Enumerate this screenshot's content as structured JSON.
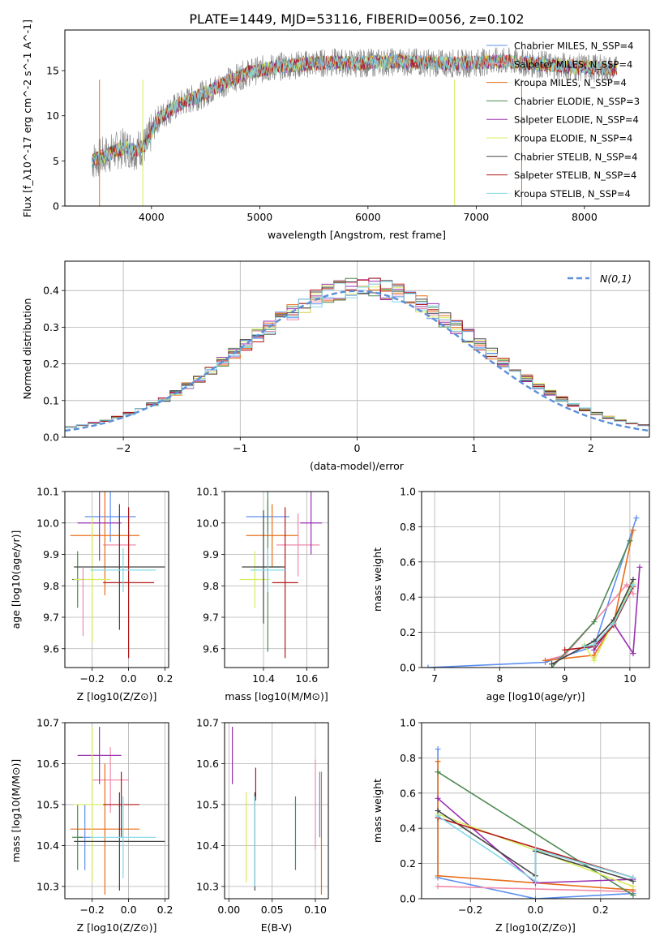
{
  "figure": {
    "title": "PLATE=1449, MJD=53116, FIBERID=0056, z=0.102"
  },
  "colors": {
    "Chabrier MILES": "#5b8ff0",
    "Salpeter MILES": "#f08aa8",
    "Kroupa MILES": "#e86e1a",
    "Chabrier ELODIE": "#4e8a52",
    "Salpeter ELODIE": "#9a2fb0",
    "Kroupa ELODIE": "#d7ec5c",
    "Chabrier STELIB": "#444444",
    "Salpeter STELIB": "#b01818",
    "Kroupa STELIB": "#80d8e8",
    "data": "#808080",
    "normal": "#5b8fd8"
  },
  "chart_data": [
    {
      "id": "spectrum",
      "type": "line",
      "xlabel": "wavelength [Angstrom, rest frame]",
      "ylabel": "Flux [f_λ10^-17 erg cm^-2 s^-1 A^-1]",
      "xlim": [
        3200,
        8600
      ],
      "ylim": [
        0,
        19.5
      ],
      "xticks": [
        4000,
        5000,
        6000,
        7000,
        8000
      ],
      "yticks": [
        0,
        5,
        10,
        15
      ],
      "grid": false,
      "legend_position": "right",
      "legend": [
        {
          "label": "Chabrier MILES, N_SSP=4",
          "key": "Chabrier MILES"
        },
        {
          "label": "Salpeter MILES, N_SSP=4",
          "key": "Salpeter MILES"
        },
        {
          "label": "Kroupa MILES, N_SSP=4",
          "key": "Kroupa MILES"
        },
        {
          "label": "Chabrier ELODIE, N_SSP=3",
          "key": "Chabrier ELODIE"
        },
        {
          "label": "Salpeter ELODIE, N_SSP=4",
          "key": "Salpeter ELODIE"
        },
        {
          "label": "Kroupa ELODIE, N_SSP=4",
          "key": "Kroupa ELODIE"
        },
        {
          "label": "Chabrier STELIB, N_SSP=4",
          "key": "Chabrier STELIB"
        },
        {
          "label": "Salpeter STELIB, N_SSP=4",
          "key": "Salpeter STELIB"
        },
        {
          "label": "Kroupa STELIB, N_SSP=4",
          "key": "Kroupa STELIB"
        }
      ],
      "continuum": {
        "x": [
          3450,
          3550,
          3650,
          3750,
          3850,
          3950,
          4050,
          4150,
          4300,
          4500,
          4700,
          4900,
          5100,
          5300,
          5500,
          5700,
          5900,
          6100,
          6300,
          6500,
          6700,
          6900,
          7100,
          7300,
          7500,
          7700,
          7900,
          8100,
          8300
        ],
        "y": [
          5.0,
          5.5,
          6.0,
          6.5,
          6.2,
          6.8,
          9.5,
          10.5,
          11.5,
          12.5,
          13.8,
          14.8,
          15.3,
          15.6,
          15.8,
          15.9,
          15.8,
          15.9,
          16.0,
          15.9,
          15.8,
          15.8,
          16.0,
          16.0,
          15.8,
          15.6,
          15.4,
          15.3,
          15.1
        ]
      }
    },
    {
      "id": "residuals",
      "type": "line",
      "xlabel": "(data-model)/error",
      "ylabel": "Normed distribution",
      "xlim": [
        -2.5,
        2.5
      ],
      "ylim": [
        0,
        0.48
      ],
      "xticks": [
        -2,
        -1,
        0,
        1,
        2
      ],
      "xticklabels": [
        "−2",
        "−1",
        "0",
        "1",
        "2"
      ],
      "yticks": [
        0.0,
        0.1,
        0.2,
        0.3,
        0.4
      ],
      "grid": true,
      "legend_position": "top-right",
      "legend": [
        {
          "label": "N(0,1)",
          "key": "normal"
        }
      ]
    },
    {
      "id": "age_vs_Z",
      "type": "scatter",
      "xlabel": "Z [log10(Z/Z⊙)]",
      "ylabel": "age  [log10(age/yr)]",
      "xlim": [
        -0.35,
        0.22
      ],
      "ylim": [
        9.54,
        10.1
      ],
      "xticks": [
        -0.2,
        0.0,
        0.2
      ],
      "xticklabels": [
        "−0.2",
        "0.0",
        "0.2"
      ],
      "yticks": [
        9.6,
        9.7,
        9.8,
        9.9,
        10.0,
        10.1
      ],
      "grid": true,
      "points": [
        {
          "key": "Chabrier MILES",
          "x": -0.1,
          "xerr": 0.14,
          "y": 10.02,
          "yerr": 0.08
        },
        {
          "key": "Salpeter MILES",
          "x": -0.05,
          "xerr": 0.09,
          "y": 9.93,
          "yerr": 0.09
        },
        {
          "key": "Kroupa MILES",
          "x": -0.13,
          "xerr": 0.19,
          "y": 9.96,
          "yerr": 0.19
        },
        {
          "key": "Chabrier ELODIE",
          "x": -0.28,
          "xerr": 0.03,
          "y": 9.82,
          "yerr": 0.09
        },
        {
          "key": "Salpeter ELODIE",
          "x": -0.16,
          "xerr": 0.12,
          "y": 10.0,
          "yerr": 0.12
        },
        {
          "key": "Kroupa ELODIE",
          "x": -0.2,
          "xerr": 0.1,
          "y": 9.82,
          "yerr": 0.2
        },
        {
          "key": "Chabrier STELIB",
          "x": -0.05,
          "xerr": 0.25,
          "y": 9.86,
          "yerr": 0.2
        },
        {
          "key": "Salpeter STELIB",
          "x": 0.0,
          "xerr": 0.14,
          "y": 9.81,
          "yerr": 0.24
        },
        {
          "key": "Kroupa STELIB",
          "x": -0.03,
          "xerr": 0.18,
          "y": 9.85,
          "yerr": 0.07
        },
        {
          "key": "Pink line",
          "x": -0.25,
          "xerr": 0.0,
          "y": 9.75,
          "yerr": 0.11
        }
      ]
    },
    {
      "id": "age_vs_mass",
      "type": "scatter",
      "xlabel": "mass [log10(M/M⊙)]",
      "ylabel": "",
      "xlim": [
        10.22,
        10.7
      ],
      "ylim": [
        9.54,
        10.1
      ],
      "xticks": [
        10.4,
        10.6
      ],
      "yticks": [
        9.6,
        9.7,
        9.8,
        9.9,
        10.0,
        10.1
      ],
      "grid": true,
      "points": [
        {
          "key": "Chabrier MILES",
          "x": 10.42,
          "xerr": 0.1,
          "y": 10.02,
          "yerr": 0.05
        },
        {
          "key": "Salpeter MILES",
          "x": 10.56,
          "xerr": 0.1,
          "y": 9.93,
          "yerr": 0.1
        },
        {
          "key": "Kroupa MILES",
          "x": 10.44,
          "xerr": 0.12,
          "y": 9.96,
          "yerr": 0.1
        },
        {
          "key": "Chabrier ELODIE",
          "x": 10.42,
          "xerr": 0.06,
          "y": 9.86,
          "yerr": 0.27
        },
        {
          "key": "Salpeter ELODIE",
          "x": 10.62,
          "xerr": 0.05,
          "y": 10.0,
          "yerr": 0.1
        },
        {
          "key": "Kroupa ELODIE",
          "x": 10.36,
          "xerr": 0.07,
          "y": 9.82,
          "yerr": 0.09
        },
        {
          "key": "Chabrier STELIB",
          "x": 10.4,
          "xerr": 0.1,
          "y": 9.86,
          "yerr": 0.18
        },
        {
          "key": "Salpeter STELIB",
          "x": 10.5,
          "xerr": 0.06,
          "y": 9.81,
          "yerr": 0.24
        },
        {
          "key": "Kroupa STELIB",
          "x": 10.42,
          "xerr": 0.08,
          "y": 9.85,
          "yerr": 0.07
        }
      ]
    },
    {
      "id": "weight_vs_age",
      "type": "line",
      "xlabel": "age  [log10(age/yr)]",
      "ylabel": "mass weight",
      "xlim": [
        6.8,
        10.3
      ],
      "ylim": [
        0,
        1.0
      ],
      "xticks": [
        7,
        8,
        9,
        10
      ],
      "yticks": [
        0.0,
        0.2,
        0.4,
        0.6,
        0.8,
        1.0
      ],
      "grid": true,
      "series": [
        {
          "key": "Chabrier MILES",
          "x": [
            6.9,
            8.7,
            9.45,
            10.1
          ],
          "y": [
            0.0,
            0.03,
            0.12,
            0.85
          ]
        },
        {
          "key": "Salpeter MILES",
          "x": [
            8.7,
            9.0,
            9.95,
            10.05
          ],
          "y": [
            0.04,
            0.07,
            0.47,
            0.42
          ]
        },
        {
          "key": "Kroupa MILES",
          "x": [
            8.7,
            9.45,
            9.75,
            10.05
          ],
          "y": [
            0.04,
            0.07,
            0.25,
            0.78
          ]
        },
        {
          "key": "Chabrier ELODIE",
          "x": [
            8.8,
            9.45,
            10.0
          ],
          "y": [
            0.0,
            0.26,
            0.72
          ]
        },
        {
          "key": "Salpeter ELODIE",
          "x": [
            9.45,
            9.75,
            10.05,
            10.15
          ],
          "y": [
            0.1,
            0.25,
            0.08,
            0.57
          ]
        },
        {
          "key": "Kroupa ELODIE",
          "x": [
            9.3,
            9.45,
            9.75,
            10.05
          ],
          "y": [
            0.13,
            0.04,
            0.26,
            0.48
          ]
        },
        {
          "key": "Chabrier STELIB",
          "x": [
            8.8,
            9.45,
            9.75,
            10.05
          ],
          "y": [
            0.02,
            0.15,
            0.27,
            0.5
          ]
        },
        {
          "key": "Salpeter STELIB",
          "x": [
            9.0,
            9.45,
            9.75,
            10.05
          ],
          "y": [
            0.1,
            0.12,
            0.24,
            0.46
          ]
        },
        {
          "key": "Kroupa STELIB",
          "x": [
            9.3,
            9.45,
            9.75,
            10.05
          ],
          "y": [
            0.12,
            0.13,
            0.25,
            0.47
          ]
        }
      ]
    },
    {
      "id": "mass_vs_Z",
      "type": "scatter",
      "xlabel": "Z [log10(Z/Z⊙)]",
      "ylabel": "mass [log10(M/M⊙)]",
      "xlim": [
        -0.35,
        0.22
      ],
      "ylim": [
        10.27,
        10.7
      ],
      "xticks": [
        -0.2,
        0.0,
        0.2
      ],
      "xticklabels": [
        "−0.2",
        "0.0",
        "0.2"
      ],
      "yticks": [
        10.3,
        10.4,
        10.5,
        10.6,
        10.7
      ],
      "grid": true,
      "points": [
        {
          "key": "Chabrier MILES",
          "x": -0.24,
          "xerr": 0.04,
          "y": 10.42,
          "yerr": 0.08
        },
        {
          "key": "Salpeter MILES",
          "x": -0.1,
          "xerr": 0.1,
          "y": 10.56,
          "yerr": 0.08
        },
        {
          "key": "Kroupa MILES",
          "x": -0.13,
          "xerr": 0.19,
          "y": 10.44,
          "yerr": 0.16
        },
        {
          "key": "Chabrier ELODIE",
          "x": -0.28,
          "xerr": 0.03,
          "y": 10.42,
          "yerr": 0.08
        },
        {
          "key": "Salpeter ELODIE",
          "x": -0.16,
          "xerr": 0.12,
          "y": 10.62,
          "yerr": 0.07
        },
        {
          "key": "Kroupa ELODIE",
          "x": -0.2,
          "xerr": 0.1,
          "y": 10.5,
          "yerr": 0.19
        },
        {
          "key": "Chabrier STELIB",
          "x": -0.05,
          "xerr": 0.25,
          "y": 10.41,
          "yerr": 0.12
        },
        {
          "key": "Salpeter STELIB",
          "x": -0.04,
          "xerr": 0.1,
          "y": 10.5,
          "yerr": 0.08
        },
        {
          "key": "Kroupa STELIB",
          "x": -0.03,
          "xerr": 0.18,
          "y": 10.42,
          "yerr": 0.1
        }
      ]
    },
    {
      "id": "mass_vs_ebv",
      "type": "scatter",
      "xlabel": "E(B-V)",
      "ylabel": "",
      "xlim": [
        -0.005,
        0.115
      ],
      "ylim": [
        10.27,
        10.7
      ],
      "xticks": [
        0.0,
        0.05,
        0.1
      ],
      "xticklabels": [
        "0.00",
        "0.05",
        "0.10"
      ],
      "yticks": [
        10.3,
        10.4,
        10.5,
        10.6,
        10.7
      ],
      "grid": true,
      "points": [
        {
          "key": "Chabrier MILES",
          "x": 0.105,
          "y": 10.5,
          "yerr": 0.08
        },
        {
          "key": "Salpeter MILES",
          "x": 0.1,
          "y": 10.5,
          "yerr": 0.11
        },
        {
          "key": "Kroupa MILES",
          "x": 0.107,
          "y": 10.43,
          "yerr": 0.15
        },
        {
          "key": "Chabrier ELODIE",
          "x": 0.077,
          "y": 10.43,
          "yerr": 0.09
        },
        {
          "key": "Salpeter ELODIE",
          "x": 0.004,
          "y": 10.62,
          "yerr": 0.07
        },
        {
          "key": "Kroupa ELODIE",
          "x": 0.02,
          "y": 10.42,
          "yerr": 0.11
        },
        {
          "key": "Chabrier STELIB",
          "x": 0.03,
          "y": 10.41,
          "yerr": 0.12
        },
        {
          "key": "Salpeter STELIB",
          "x": 0.031,
          "y": 10.55,
          "yerr": 0.04
        },
        {
          "key": "Kroupa STELIB",
          "x": 0.03,
          "y": 10.41,
          "yerr": 0.11
        }
      ]
    },
    {
      "id": "weight_vs_Z",
      "type": "line",
      "xlabel": "Z [log10(Z/Z⊙)]",
      "ylabel": "mass weight",
      "xlim": [
        -0.35,
        0.35
      ],
      "ylim": [
        0,
        1.0
      ],
      "xticks": [
        -0.2,
        0.0,
        0.2
      ],
      "xticklabels": [
        "−0.2",
        "0.0",
        "0.2"
      ],
      "yticks": [
        0.0,
        0.2,
        0.4,
        0.6,
        0.8,
        1.0
      ],
      "grid": true,
      "series": [
        {
          "key": "Chabrier MILES",
          "x": [
            -0.3,
            -0.3,
            0.0,
            0.3
          ],
          "y": [
            0.85,
            0.12,
            0.0,
            0.03
          ]
        },
        {
          "key": "Salpeter MILES",
          "x": [
            -0.3,
            0.3
          ],
          "y": [
            0.07,
            0.04
          ]
        },
        {
          "key": "Kroupa MILES",
          "x": [
            -0.3,
            -0.3,
            0.3
          ],
          "y": [
            0.78,
            0.13,
            0.05
          ]
        },
        {
          "key": "Chabrier ELODIE",
          "x": [
            -0.3,
            0.3
          ],
          "y": [
            0.72,
            0.02
          ]
        },
        {
          "key": "Salpeter ELODIE",
          "x": [
            -0.3,
            0.0,
            0.3
          ],
          "y": [
            0.57,
            0.09,
            0.11
          ]
        },
        {
          "key": "Kroupa ELODIE",
          "x": [
            -0.3,
            0.3
          ],
          "y": [
            0.48,
            0.07
          ]
        },
        {
          "key": "Chabrier STELIB",
          "x": [
            -0.3,
            0.0,
            0.0,
            0.3
          ],
          "y": [
            0.5,
            0.13,
            0.27,
            0.1
          ]
        },
        {
          "key": "Salpeter STELIB",
          "x": [
            -0.3,
            0.3
          ],
          "y": [
            0.46,
            0.12
          ]
        },
        {
          "key": "Kroupa STELIB",
          "x": [
            -0.3,
            0.0,
            0.0,
            0.3
          ],
          "y": [
            0.47,
            0.1,
            0.28,
            0.12
          ]
        }
      ]
    }
  ]
}
